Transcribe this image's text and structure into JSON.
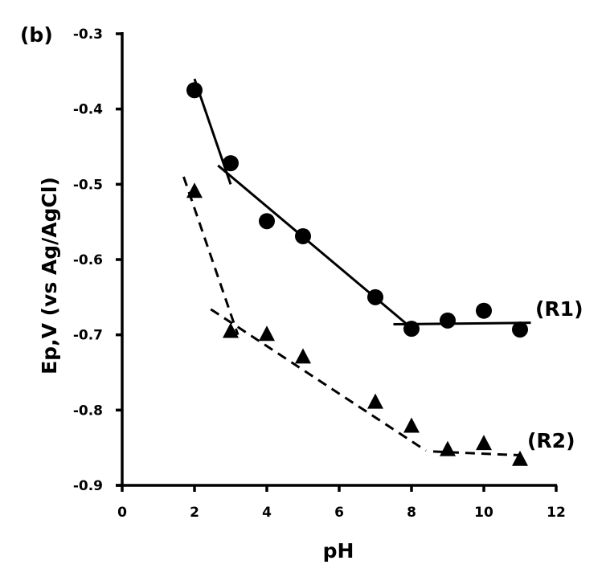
{
  "chart_data": {
    "type": "scatter",
    "panel_label": "(b)",
    "xlabel": "pH",
    "ylabel": "Ep,V (vs Ag/AgCl)",
    "xlim": [
      0,
      12
    ],
    "ylim": [
      -0.9,
      -0.3
    ],
    "x_ticks": [
      0,
      2,
      4,
      6,
      8,
      10,
      12
    ],
    "x_tick_labels": [
      "0",
      "2",
      "4",
      "6",
      "8",
      "10",
      "12"
    ],
    "y_ticks": [
      -0.3,
      -0.4,
      -0.5,
      -0.6,
      -0.7,
      -0.8,
      -0.9
    ],
    "y_tick_labels": [
      "-0.3",
      "-0.4",
      "-0.5",
      "-0.6",
      "-0.7",
      "-0.8",
      "-0.9"
    ],
    "grid": false,
    "series": [
      {
        "name": "(R1)",
        "marker": "circle",
        "line_style": "solid",
        "color": "#000000",
        "x": [
          2,
          3,
          4,
          5,
          7,
          8,
          9,
          10,
          11
        ],
        "y": [
          -0.375,
          -0.472,
          -0.549,
          -0.569,
          -0.65,
          -0.692,
          -0.681,
          -0.668,
          -0.693
        ],
        "fit_segments": [
          {
            "x": [
              2.0,
              3.0
            ],
            "y": [
              -0.36,
              -0.5
            ]
          },
          {
            "x": [
              2.65,
              7.9
            ],
            "y": [
              -0.475,
              -0.687
            ]
          },
          {
            "x": [
              7.5,
              11.3
            ],
            "y": [
              -0.686,
              -0.684
            ]
          }
        ]
      },
      {
        "name": "(R2)",
        "marker": "triangle",
        "line_style": "dashed",
        "color": "#000000",
        "x": [
          2,
          3,
          4,
          5,
          7,
          8,
          9,
          10,
          11
        ],
        "y": [
          -0.51,
          -0.696,
          -0.7,
          -0.73,
          -0.79,
          -0.822,
          -0.853,
          -0.845,
          -0.866
        ],
        "fit_segments": [
          {
            "x": [
              1.7,
              3.2
            ],
            "y": [
              -0.49,
              -0.7
            ]
          },
          {
            "x": [
              2.45,
              8.4
            ],
            "y": [
              -0.666,
              -0.854
            ]
          },
          {
            "x": [
              8.6,
              11.0
            ],
            "y": [
              -0.855,
              -0.86
            ]
          }
        ]
      }
    ]
  }
}
